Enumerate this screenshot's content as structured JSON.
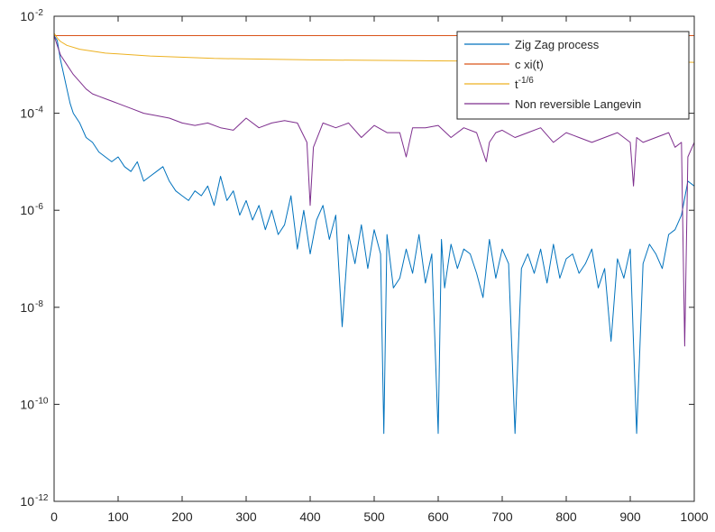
{
  "chart_data": {
    "type": "line",
    "title": "",
    "xlabel": "",
    "ylabel": "",
    "xlim": [
      0,
      1000
    ],
    "ylim_exp": [
      -12,
      -2
    ],
    "yscale": "log",
    "grid": false,
    "legend_position": "top-right",
    "x_ticks": [
      {
        "value": 0,
        "label": "0"
      },
      {
        "value": 100,
        "label": "100"
      },
      {
        "value": 200,
        "label": "200"
      },
      {
        "value": 300,
        "label": "300"
      },
      {
        "value": 400,
        "label": "400"
      },
      {
        "value": 500,
        "label": "500"
      },
      {
        "value": 600,
        "label": "600"
      },
      {
        "value": 700,
        "label": "700"
      },
      {
        "value": 800,
        "label": "800"
      },
      {
        "value": 900,
        "label": "900"
      },
      {
        "value": 1000,
        "label": "1000"
      }
    ],
    "y_ticks": [
      {
        "exp": -2,
        "base": "10",
        "power": "-2"
      },
      {
        "exp": -4,
        "base": "10",
        "power": "-4"
      },
      {
        "exp": -6,
        "base": "10",
        "power": "-6"
      },
      {
        "exp": -8,
        "base": "10",
        "power": "-8"
      },
      {
        "exp": -10,
        "base": "10",
        "power": "-10"
      },
      {
        "exp": -12,
        "base": "10",
        "power": "-12"
      }
    ],
    "series": [
      {
        "name": "Zig Zag process",
        "color": "#0072BD",
        "x": [
          0,
          5,
          10,
          15,
          20,
          25,
          30,
          40,
          50,
          60,
          70,
          80,
          90,
          100,
          110,
          120,
          130,
          140,
          150,
          160,
          170,
          180,
          190,
          200,
          210,
          220,
          230,
          240,
          250,
          260,
          270,
          280,
          290,
          300,
          310,
          320,
          330,
          340,
          350,
          360,
          370,
          380,
          390,
          400,
          410,
          420,
          430,
          440,
          450,
          460,
          470,
          480,
          490,
          500,
          510,
          515,
          520,
          530,
          540,
          550,
          560,
          570,
          580,
          590,
          600,
          605,
          610,
          620,
          630,
          640,
          650,
          660,
          670,
          680,
          690,
          700,
          710,
          720,
          730,
          740,
          750,
          760,
          770,
          780,
          790,
          800,
          810,
          820,
          830,
          840,
          850,
          860,
          870,
          880,
          890,
          900,
          910,
          920,
          930,
          940,
          950,
          960,
          970,
          980,
          990,
          1000
        ],
        "y_exp": [
          -2.4,
          -2.5,
          -2.9,
          -3.2,
          -3.5,
          -3.8,
          -4.0,
          -4.2,
          -4.5,
          -4.6,
          -4.8,
          -4.9,
          -5.0,
          -4.9,
          -5.1,
          -5.2,
          -5.0,
          -5.4,
          -5.3,
          -5.2,
          -5.1,
          -5.4,
          -5.6,
          -5.7,
          -5.8,
          -5.6,
          -5.7,
          -5.5,
          -5.9,
          -5.3,
          -5.8,
          -5.6,
          -6.1,
          -5.8,
          -6.2,
          -5.9,
          -6.4,
          -6.0,
          -6.5,
          -6.3,
          -5.7,
          -6.8,
          -6.0,
          -6.9,
          -6.2,
          -5.9,
          -6.6,
          -6.1,
          -8.4,
          -6.5,
          -7.1,
          -6.3,
          -7.2,
          -6.4,
          -6.9,
          -10.6,
          -6.5,
          -7.6,
          -7.4,
          -6.8,
          -7.3,
          -6.5,
          -7.5,
          -6.9,
          -10.6,
          -6.6,
          -7.6,
          -6.7,
          -7.2,
          -6.8,
          -6.9,
          -7.3,
          -7.8,
          -6.6,
          -7.4,
          -6.8,
          -7.1,
          -10.6,
          -7.2,
          -6.9,
          -7.3,
          -6.8,
          -7.5,
          -6.7,
          -7.4,
          -7.0,
          -6.9,
          -7.3,
          -7.1,
          -6.8,
          -7.6,
          -7.2,
          -8.7,
          -7.0,
          -7.4,
          -6.8,
          -10.6,
          -7.1,
          -6.7,
          -6.9,
          -7.2,
          -6.5,
          -6.4,
          -6.1,
          -5.4,
          -5.5
        ]
      },
      {
        "name": "c xi(t)",
        "color": "#D95319",
        "x": [
          0,
          1000
        ],
        "y_exp": [
          -2.4,
          -2.4
        ]
      },
      {
        "name": "t^{-1/6}",
        "color": "#EDB120",
        "x": [
          0,
          5,
          10,
          20,
          40,
          80,
          150,
          250,
          400,
          600,
          800,
          1000
        ],
        "y_exp": [
          -2.35,
          -2.45,
          -2.52,
          -2.6,
          -2.68,
          -2.76,
          -2.82,
          -2.87,
          -2.9,
          -2.92,
          -2.93,
          -2.95
        ]
      },
      {
        "name": "Non reversible Langevin",
        "color": "#7E2F8E",
        "x": [
          0,
          5,
          10,
          20,
          30,
          40,
          50,
          60,
          70,
          80,
          90,
          100,
          120,
          140,
          160,
          180,
          200,
          220,
          240,
          260,
          280,
          300,
          320,
          340,
          360,
          380,
          395,
          400,
          405,
          420,
          440,
          460,
          480,
          500,
          520,
          540,
          550,
          560,
          580,
          600,
          620,
          640,
          660,
          675,
          680,
          690,
          700,
          720,
          740,
          760,
          780,
          800,
          820,
          840,
          860,
          880,
          900,
          905,
          910,
          920,
          940,
          960,
          970,
          980,
          985,
          990,
          1000
        ],
        "y_exp": [
          -2.4,
          -2.6,
          -2.8,
          -3.0,
          -3.2,
          -3.35,
          -3.5,
          -3.6,
          -3.65,
          -3.7,
          -3.75,
          -3.8,
          -3.9,
          -4.0,
          -4.05,
          -4.1,
          -4.2,
          -4.25,
          -4.2,
          -4.3,
          -4.35,
          -4.1,
          -4.3,
          -4.2,
          -4.15,
          -4.2,
          -4.6,
          -5.9,
          -4.7,
          -4.2,
          -4.3,
          -4.2,
          -4.5,
          -4.25,
          -4.4,
          -4.4,
          -4.9,
          -4.3,
          -4.3,
          -4.25,
          -4.5,
          -4.3,
          -4.4,
          -5.0,
          -4.6,
          -4.4,
          -4.35,
          -4.5,
          -4.4,
          -4.3,
          -4.6,
          -4.4,
          -4.5,
          -4.6,
          -4.5,
          -4.4,
          -4.6,
          -5.5,
          -4.5,
          -4.6,
          -4.5,
          -4.4,
          -4.7,
          -4.6,
          -8.8,
          -4.9,
          -4.6
        ]
      }
    ]
  }
}
